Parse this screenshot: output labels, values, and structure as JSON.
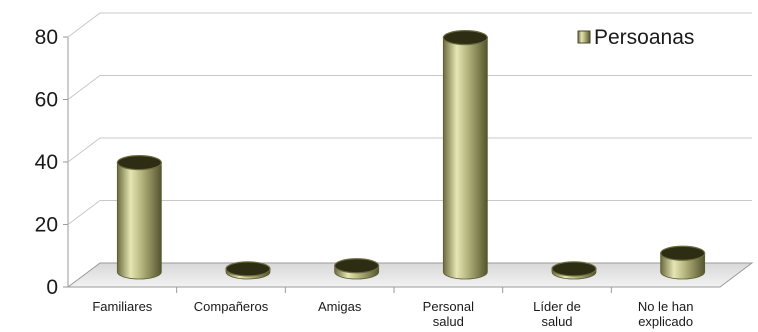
{
  "chart_data": {
    "type": "bar",
    "style": "3d-cylinder",
    "categories": [
      [
        "Familiares"
      ],
      [
        "Compañeros"
      ],
      [
        "Amigas"
      ],
      [
        "Personal",
        "salud"
      ],
      [
        "Líder de",
        "salud"
      ],
      [
        "No le han",
        "explicado"
      ]
    ],
    "series": [
      {
        "name": "Persoanas",
        "values": [
          35,
          1,
          2,
          75,
          1,
          6
        ]
      }
    ],
    "ylim": [
      0,
      80
    ],
    "yticks": [
      "0",
      "20",
      "40",
      "60",
      "80"
    ],
    "ytick_values": [
      0,
      20,
      40,
      60,
      80
    ],
    "grid": true,
    "legend": "top-right",
    "colors": {
      "bar_light": "#e6e6b4",
      "bar_mid": "#b5b57e",
      "bar_dark": "#6b6b3f",
      "bar_top": "#2d2d14",
      "grid": "#c8c8c8",
      "floor": "#e2e2e2"
    }
  }
}
